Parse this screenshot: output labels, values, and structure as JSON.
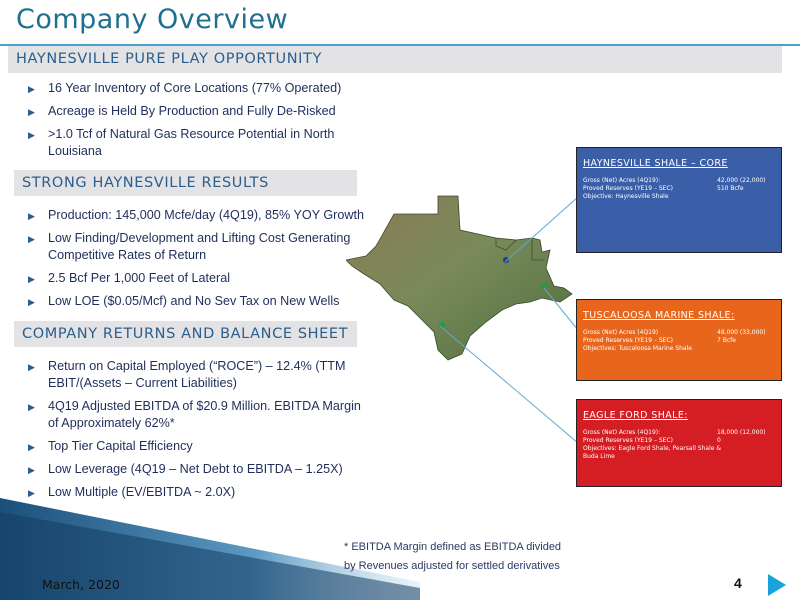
{
  "title": "Company Overview",
  "sections": [
    {
      "heading": "HAYNESVILLE PURE PLAY OPPORTUNITY",
      "bullets": [
        "16 Year Inventory of Core Locations (77% Operated)",
        "Acreage is Held By Production and Fully De-Risked",
        ">1.0 Tcf of Natural Gas Resource Potential in North Louisiana"
      ]
    },
    {
      "heading": "STRONG HAYNESVILLE RESULTS",
      "bullets": [
        "Production: 145,000 Mcfe/day (4Q19), 85% YOY Growth",
        "Low Finding/Development and Lifting Cost Generating Competitive Rates of Return",
        "2.5 Bcf Per 1,000 Feet of Lateral",
        "Low LOE ($0.05/Mcf) and No Sev Tax on New Wells"
      ]
    },
    {
      "heading": "COMPANY RETURNS AND BALANCE SHEET",
      "bullets": [
        "Return on Capital Employed (“ROCE”) – 12.4% (TTM EBIT/(Assets – Current Liabilities)",
        "4Q19 Adjusted EBITDA of $20.9 Million. EBITDA Margin of Approximately 62%*",
        "Top Tier Capital Efficiency",
        "Low Leverage (4Q19 – Net Debt to EBITDA – 1.25X)",
        "Low Multiple (EV/EBITDA  ~ 2.0X)"
      ]
    }
  ],
  "info_boxes": [
    {
      "title": "HAYNESVILLE SHALE – CORE",
      "color": "#3a5fa8",
      "rows": [
        {
          "label": "Gross (Net) Acres (4Q19):",
          "value": "42,000 (22,000)"
        },
        {
          "label": "Proved Reserves (YE19 – SEC)",
          "value": "510 Bcfe"
        },
        {
          "label": "Objective: Haynesville Shale",
          "value": ""
        }
      ]
    },
    {
      "title": "TUSCALOOSA MARINE SHALE:",
      "color": "#e8661c",
      "rows": [
        {
          "label": "Gross (Net) Acres (4Q19)",
          "value": "48,000 (33,000)"
        },
        {
          "label": "Proved Reserves (YE19 – SEC)",
          "value": "7 Bcfe"
        },
        {
          "label": "Objectives: Tuscaloosa Marine Shale",
          "value": ""
        }
      ]
    },
    {
      "title": "EAGLE FORD SHALE:",
      "color": "#d41e24",
      "rows": [
        {
          "label": "Gross (Net) Acres (4Q19):",
          "value": "18,000 (12,000)"
        },
        {
          "label": "Proved Reserves (YE19 – SEC)",
          "value": "0"
        },
        {
          "label": "Objectives: Eagle Ford Shale, Pearsall Shale & Buda Lime",
          "value": ""
        }
      ]
    }
  ],
  "footnote_line1": "* EBITDA Margin defined as EBITDA divided",
  "footnote_line2": "by Revenues adjusted for settled derivatives",
  "date": "March, 2020",
  "page_number": "4",
  "colors": {
    "accent": "#4aa3c8",
    "title": "#1f6f8f",
    "haynesville_box": "#3a5fa8",
    "tuscaloosa_box": "#e8661c",
    "eagle_ford_box": "#d41e24"
  }
}
